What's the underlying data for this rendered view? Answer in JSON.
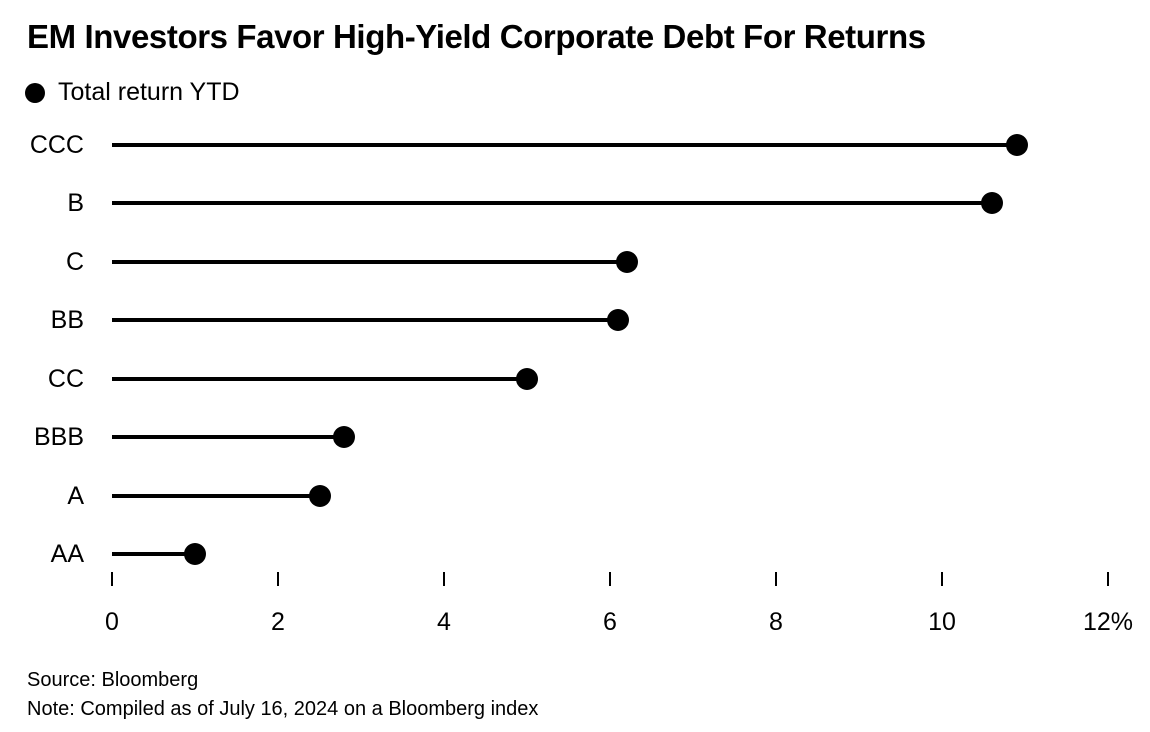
{
  "chart_data": {
    "type": "lollipop",
    "title": "EM Investors Favor High-Yield Corporate Debt For Returns",
    "legend": "Total return YTD",
    "categories": [
      "CCC",
      "B",
      "C",
      "BB",
      "CC",
      "BBB",
      "A",
      "AA"
    ],
    "values": [
      10.9,
      10.6,
      6.2,
      6.1,
      5.0,
      2.8,
      2.5,
      1.0
    ],
    "unit": "%",
    "xlabel": "",
    "ylabel": "",
    "xlim": [
      0,
      12
    ],
    "x_ticks": [
      0,
      2,
      4,
      6,
      8,
      10,
      12
    ],
    "x_tick_labels": [
      "0",
      "2",
      "4",
      "6",
      "8",
      "10",
      "12%"
    ],
    "grid": "off",
    "legend_position": "top-left",
    "dot_color": "#000000",
    "line_color": "#000000",
    "text_color": "#000000",
    "background_color": "#ffffff",
    "source": "Source: Bloomberg",
    "note": "Note: Compiled as of July 16, 2024 on a Bloomberg index"
  }
}
